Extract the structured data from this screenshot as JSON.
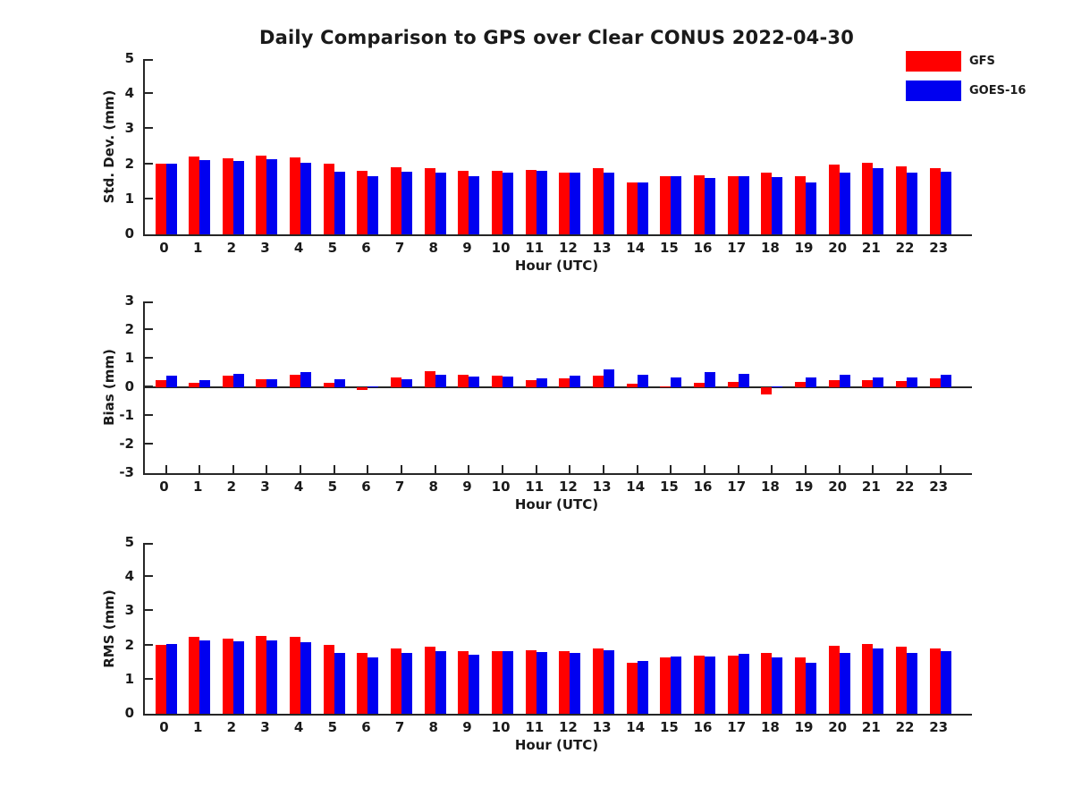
{
  "title": "Daily Comparison to GPS over Clear CONUS 2022-04-30",
  "colors": {
    "gfs": "#ff0000",
    "goes16": "#0000f0",
    "axis": "#262626",
    "text": "#1a1a1a"
  },
  "legend": [
    {
      "label": "GFS",
      "color": "#ff0000"
    },
    {
      "label": "GOES-16",
      "color": "#0000f0"
    }
  ],
  "chart_data": [
    {
      "type": "bar",
      "ylabel": "Std. Dev. (mm)",
      "xlabel": "Hour (UTC)",
      "ylim": [
        0,
        5
      ],
      "yticks": [
        0,
        1,
        2,
        3,
        4,
        5
      ],
      "grid": false,
      "legend_position": "top-right-of-figure",
      "categories": [
        "0",
        "1",
        "2",
        "3",
        "4",
        "5",
        "6",
        "7",
        "8",
        "9",
        "10",
        "11",
        "12",
        "13",
        "14",
        "15",
        "16",
        "17",
        "18",
        "19",
        "20",
        "21",
        "22",
        "23"
      ],
      "series": [
        {
          "name": "GFS",
          "color": "#ff0000",
          "values": [
            2.02,
            2.23,
            2.18,
            2.25,
            2.19,
            2.01,
            1.82,
            1.91,
            1.88,
            1.8,
            1.8,
            1.84,
            1.77,
            1.88,
            1.47,
            1.65,
            1.69,
            1.65,
            1.75,
            1.65,
            1.99,
            2.04,
            1.93,
            1.88
          ]
        },
        {
          "name": "GOES-16",
          "color": "#0000f0",
          "values": [
            2.02,
            2.12,
            2.1,
            2.15,
            2.04,
            1.78,
            1.66,
            1.78,
            1.77,
            1.67,
            1.77,
            1.81,
            1.76,
            1.76,
            1.48,
            1.66,
            1.6,
            1.65,
            1.64,
            1.47,
            1.75,
            1.88,
            1.75,
            1.78
          ]
        }
      ]
    },
    {
      "type": "bar",
      "ylabel": "Bias (mm)",
      "xlabel": "Hour (UTC)",
      "ylim": [
        -3,
        3
      ],
      "yticks": [
        -3,
        -2,
        -1,
        0,
        1,
        2,
        3
      ],
      "grid": false,
      "categories": [
        "0",
        "1",
        "2",
        "3",
        "4",
        "5",
        "6",
        "7",
        "8",
        "9",
        "10",
        "11",
        "12",
        "13",
        "14",
        "15",
        "16",
        "17",
        "18",
        "19",
        "20",
        "21",
        "22",
        "23"
      ],
      "series": [
        {
          "name": "GFS",
          "color": "#ff0000",
          "values": [
            0.25,
            0.16,
            0.4,
            0.27,
            0.44,
            0.17,
            -0.08,
            0.33,
            0.55,
            0.45,
            0.42,
            0.24,
            0.32,
            0.42,
            0.12,
            0.02,
            0.15,
            0.18,
            -0.25,
            0.18,
            0.24,
            0.26,
            0.21,
            0.32
          ]
        },
        {
          "name": "GOES-16",
          "color": "#0000f0",
          "values": [
            0.4,
            0.26,
            0.46,
            0.29,
            0.52,
            0.29,
            0.02,
            0.28,
            0.45,
            0.39,
            0.37,
            0.3,
            0.42,
            0.62,
            0.45,
            0.33,
            0.52,
            0.48,
            0.02,
            0.34,
            0.43,
            0.33,
            0.33,
            0.45
          ]
        }
      ]
    },
    {
      "type": "bar",
      "ylabel": "RMS (mm)",
      "xlabel": "Hour (UTC)",
      "ylim": [
        0,
        5
      ],
      "yticks": [
        0,
        1,
        2,
        3,
        4,
        5
      ],
      "grid": false,
      "categories": [
        "0",
        "1",
        "2",
        "3",
        "4",
        "5",
        "6",
        "7",
        "8",
        "9",
        "10",
        "11",
        "12",
        "13",
        "14",
        "15",
        "16",
        "17",
        "18",
        "19",
        "20",
        "21",
        "22",
        "23"
      ],
      "series": [
        {
          "name": "GFS",
          "color": "#ff0000",
          "values": [
            2.02,
            2.24,
            2.21,
            2.28,
            2.24,
            2.01,
            1.79,
            1.92,
            1.97,
            1.82,
            1.84,
            1.87,
            1.82,
            1.91,
            1.48,
            1.65,
            1.7,
            1.69,
            1.78,
            1.65,
            2.0,
            2.04,
            1.96,
            1.92
          ]
        },
        {
          "name": "GOES-16",
          "color": "#0000f0",
          "values": [
            2.05,
            2.15,
            2.12,
            2.15,
            2.1,
            1.79,
            1.65,
            1.79,
            1.84,
            1.72,
            1.82,
            1.81,
            1.79,
            1.87,
            1.55,
            1.68,
            1.68,
            1.75,
            1.65,
            1.5,
            1.77,
            1.91,
            1.78,
            1.84
          ]
        }
      ]
    }
  ]
}
